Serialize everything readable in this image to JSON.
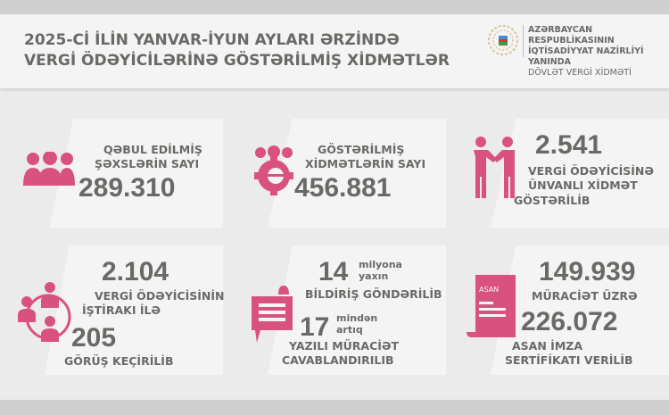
{
  "header": {
    "title_line1": "2025-Cİ İLİN YANVAR-İYUN AYLARI ƏRZİNDƏ",
    "title_line2": "VERGİ ÖDƏYİCİLƏRİNƏ GÖSTƏRİLMİŞ XİDMƏTLƏR",
    "org_line1": "AZƏRBAYCAN RESPUBLİKASININ",
    "org_line2": "İQTİSADİYYAT NAZİRLİYİ YANINDA",
    "org_line3": "DÖVLƏT VERGİ XİDMƏTİ"
  },
  "colors": {
    "accent": "#d9527f",
    "text": "#6b6966",
    "panel": "#f4f4f4",
    "band": "#cfcfcf"
  },
  "cards": [
    {
      "icon": "people-group-icon",
      "label1": "QƏBUL EDİLMİŞ",
      "label2": "ŞƏXSLƏRİN SAYI",
      "value": "289.310"
    },
    {
      "icon": "people-gear-icon",
      "label1": "GÖSTƏRİLMİŞ",
      "label2": "XİDMƏTLƏRİN SAYI",
      "value": "456.881"
    },
    {
      "icon": "handshake-icon",
      "value": "2.541",
      "label1": "VERGİ ÖDƏYİCİSİNƏ",
      "label2": "ÜNVANLI XİDMƏT",
      "label3": "GÖSTƏRİLİB"
    },
    {
      "icon": "meeting-circle-icon",
      "value": "2.104",
      "label1": "VERGİ ÖDƏYİCİSİNİN",
      "label2": "İŞTİRAKI İLƏ",
      "value2": "205",
      "label3": "GÖRÜŞ KEÇİRİLİB"
    },
    {
      "icon": "notification-chat-icon",
      "value": "14",
      "unit1": "milyona",
      "unit2": "yaxın",
      "label1": "BİLDİRİŞ GÖNDƏRİLİB",
      "value2": "17",
      "unit3": "mindən",
      "unit4": "artıq",
      "label2": "YAZILI MÜRACİƏT",
      "label3": "CAVABLANDIRILIB"
    },
    {
      "icon": "asan-certificate-icon",
      "icon_text": "ASAN",
      "value": "149.939",
      "label1": "MÜRACİƏT ÜZRƏ",
      "value2": "226.072",
      "label2": "ASAN İMZA",
      "label3": "SERTİFİKATI VERİLİB"
    }
  ]
}
